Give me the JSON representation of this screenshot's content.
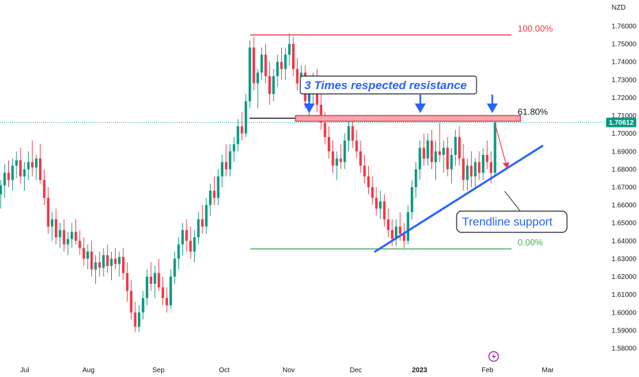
{
  "chart_data": {
    "type": "candlestick",
    "symbol_currency": "NZD",
    "y_ticks": [
      1.76,
      1.75,
      1.74,
      1.73,
      1.72,
      1.71,
      1.7,
      1.69,
      1.68,
      1.67,
      1.66,
      1.65,
      1.64,
      1.63,
      1.62,
      1.61,
      1.6,
      1.59,
      1.58
    ],
    "y_tick_labels": [
      "1.76000",
      "1.75000",
      "1.74000",
      "1.73000",
      "1.72000",
      "1.71000",
      "1.70000",
      "1.69000",
      "1.68000",
      "1.67000",
      "1.66000",
      "1.65000",
      "1.64000",
      "1.63000",
      "1.62000",
      "1.61000",
      "1.60000",
      "1.59000",
      "1.58000"
    ],
    "ylim": [
      1.5757,
      1.7675
    ],
    "x_labels": [
      "Jul",
      "Aug",
      "Sep",
      "Oct",
      "Nov",
      "Dec",
      "2023",
      "Feb",
      "Mar"
    ],
    "current_price": 1.70612,
    "current_price_label": "1.70612",
    "up_color": "#089981",
    "down_color": "#f23645",
    "fib_levels": [
      {
        "label": "100.00%",
        "price": 1.755,
        "color": "#f23645"
      },
      {
        "label": "61.80%",
        "price": 1.7085,
        "color": "#131722"
      },
      {
        "label": "0.00%",
        "price": 1.6355,
        "color": "#4caf50"
      }
    ],
    "resistance_zone": {
      "price_top": 1.71,
      "price_bottom": 1.7068,
      "color": "#f23645"
    },
    "annotations": {
      "resistance_text": "3 Times respected resistance",
      "trendline_text": "Trendline support"
    },
    "trendline": {
      "start_price": 1.634,
      "end_price": 1.693
    },
    "candles": [
      {
        "o": 1.666,
        "h": 1.674,
        "l": 1.658,
        "c": 1.671
      },
      {
        "o": 1.671,
        "h": 1.683,
        "l": 1.664,
        "c": 1.678
      },
      {
        "o": 1.678,
        "h": 1.685,
        "l": 1.67,
        "c": 1.674
      },
      {
        "o": 1.674,
        "h": 1.686,
        "l": 1.668,
        "c": 1.682
      },
      {
        "o": 1.682,
        "h": 1.69,
        "l": 1.675,
        "c": 1.685
      },
      {
        "o": 1.685,
        "h": 1.692,
        "l": 1.672,
        "c": 1.676
      },
      {
        "o": 1.676,
        "h": 1.684,
        "l": 1.668,
        "c": 1.68
      },
      {
        "o": 1.68,
        "h": 1.69,
        "l": 1.674,
        "c": 1.684
      },
      {
        "o": 1.684,
        "h": 1.696,
        "l": 1.676,
        "c": 1.681
      },
      {
        "o": 1.681,
        "h": 1.688,
        "l": 1.674,
        "c": 1.686
      },
      {
        "o": 1.686,
        "h": 1.694,
        "l": 1.672,
        "c": 1.674
      },
      {
        "o": 1.674,
        "h": 1.68,
        "l": 1.66,
        "c": 1.664
      },
      {
        "o": 1.664,
        "h": 1.67,
        "l": 1.644,
        "c": 1.648
      },
      {
        "o": 1.648,
        "h": 1.656,
        "l": 1.64,
        "c": 1.652
      },
      {
        "o": 1.652,
        "h": 1.658,
        "l": 1.638,
        "c": 1.642
      },
      {
        "o": 1.642,
        "h": 1.65,
        "l": 1.636,
        "c": 1.646
      },
      {
        "o": 1.646,
        "h": 1.652,
        "l": 1.634,
        "c": 1.638
      },
      {
        "o": 1.638,
        "h": 1.645,
        "l": 1.632,
        "c": 1.641
      },
      {
        "o": 1.641,
        "h": 1.65,
        "l": 1.636,
        "c": 1.645
      },
      {
        "o": 1.645,
        "h": 1.652,
        "l": 1.638,
        "c": 1.64
      },
      {
        "o": 1.64,
        "h": 1.646,
        "l": 1.632,
        "c": 1.636
      },
      {
        "o": 1.636,
        "h": 1.642,
        "l": 1.626,
        "c": 1.63
      },
      {
        "o": 1.63,
        "h": 1.638,
        "l": 1.624,
        "c": 1.634
      },
      {
        "o": 1.634,
        "h": 1.64,
        "l": 1.62,
        "c": 1.624
      },
      {
        "o": 1.624,
        "h": 1.632,
        "l": 1.616,
        "c": 1.628
      },
      {
        "o": 1.628,
        "h": 1.634,
        "l": 1.62,
        "c": 1.625
      },
      {
        "o": 1.625,
        "h": 1.636,
        "l": 1.62,
        "c": 1.632
      },
      {
        "o": 1.632,
        "h": 1.638,
        "l": 1.622,
        "c": 1.626
      },
      {
        "o": 1.626,
        "h": 1.634,
        "l": 1.618,
        "c": 1.63
      },
      {
        "o": 1.63,
        "h": 1.636,
        "l": 1.624,
        "c": 1.627
      },
      {
        "o": 1.627,
        "h": 1.634,
        "l": 1.62,
        "c": 1.631
      },
      {
        "o": 1.631,
        "h": 1.636,
        "l": 1.618,
        "c": 1.622
      },
      {
        "o": 1.622,
        "h": 1.628,
        "l": 1.606,
        "c": 1.612
      },
      {
        "o": 1.612,
        "h": 1.618,
        "l": 1.596,
        "c": 1.6
      },
      {
        "o": 1.6,
        "h": 1.606,
        "l": 1.589,
        "c": 1.592
      },
      {
        "o": 1.592,
        "h": 1.604,
        "l": 1.589,
        "c": 1.6
      },
      {
        "o": 1.6,
        "h": 1.612,
        "l": 1.596,
        "c": 1.608
      },
      {
        "o": 1.608,
        "h": 1.624,
        "l": 1.604,
        "c": 1.62
      },
      {
        "o": 1.62,
        "h": 1.628,
        "l": 1.612,
        "c": 1.616
      },
      {
        "o": 1.616,
        "h": 1.626,
        "l": 1.608,
        "c": 1.622
      },
      {
        "o": 1.622,
        "h": 1.63,
        "l": 1.612,
        "c": 1.614
      },
      {
        "o": 1.614,
        "h": 1.62,
        "l": 1.604,
        "c": 1.608
      },
      {
        "o": 1.608,
        "h": 1.614,
        "l": 1.6,
        "c": 1.604
      },
      {
        "o": 1.604,
        "h": 1.624,
        "l": 1.602,
        "c": 1.62
      },
      {
        "o": 1.62,
        "h": 1.634,
        "l": 1.616,
        "c": 1.63
      },
      {
        "o": 1.63,
        "h": 1.642,
        "l": 1.624,
        "c": 1.638
      },
      {
        "o": 1.638,
        "h": 1.65,
        "l": 1.632,
        "c": 1.646
      },
      {
        "o": 1.646,
        "h": 1.652,
        "l": 1.634,
        "c": 1.64
      },
      {
        "o": 1.64,
        "h": 1.648,
        "l": 1.63,
        "c": 1.634
      },
      {
        "o": 1.634,
        "h": 1.646,
        "l": 1.628,
        "c": 1.642
      },
      {
        "o": 1.642,
        "h": 1.656,
        "l": 1.638,
        "c": 1.652
      },
      {
        "o": 1.652,
        "h": 1.66,
        "l": 1.644,
        "c": 1.648
      },
      {
        "o": 1.648,
        "h": 1.664,
        "l": 1.644,
        "c": 1.66
      },
      {
        "o": 1.66,
        "h": 1.672,
        "l": 1.654,
        "c": 1.668
      },
      {
        "o": 1.668,
        "h": 1.676,
        "l": 1.66,
        "c": 1.664
      },
      {
        "o": 1.664,
        "h": 1.68,
        "l": 1.66,
        "c": 1.676
      },
      {
        "o": 1.676,
        "h": 1.688,
        "l": 1.67,
        "c": 1.684
      },
      {
        "o": 1.684,
        "h": 1.694,
        "l": 1.676,
        "c": 1.68
      },
      {
        "o": 1.68,
        "h": 1.694,
        "l": 1.676,
        "c": 1.69
      },
      {
        "o": 1.69,
        "h": 1.698,
        "l": 1.684,
        "c": 1.694
      },
      {
        "o": 1.694,
        "h": 1.708,
        "l": 1.69,
        "c": 1.704
      },
      {
        "o": 1.704,
        "h": 1.712,
        "l": 1.696,
        "c": 1.7
      },
      {
        "o": 1.7,
        "h": 1.722,
        "l": 1.698,
        "c": 1.718
      },
      {
        "o": 1.718,
        "h": 1.752,
        "l": 1.714,
        "c": 1.748
      },
      {
        "o": 1.748,
        "h": 1.754,
        "l": 1.724,
        "c": 1.728
      },
      {
        "o": 1.728,
        "h": 1.736,
        "l": 1.714,
        "c": 1.734
      },
      {
        "o": 1.734,
        "h": 1.748,
        "l": 1.73,
        "c": 1.744
      },
      {
        "o": 1.744,
        "h": 1.75,
        "l": 1.728,
        "c": 1.732
      },
      {
        "o": 1.732,
        "h": 1.74,
        "l": 1.716,
        "c": 1.722
      },
      {
        "o": 1.722,
        "h": 1.736,
        "l": 1.718,
        "c": 1.732
      },
      {
        "o": 1.732,
        "h": 1.744,
        "l": 1.726,
        "c": 1.74
      },
      {
        "o": 1.74,
        "h": 1.748,
        "l": 1.73,
        "c": 1.736
      },
      {
        "o": 1.736,
        "h": 1.748,
        "l": 1.73,
        "c": 1.744
      },
      {
        "o": 1.744,
        "h": 1.756,
        "l": 1.738,
        "c": 1.75
      },
      {
        "o": 1.75,
        "h": 1.754,
        "l": 1.732,
        "c": 1.736
      },
      {
        "o": 1.736,
        "h": 1.742,
        "l": 1.724,
        "c": 1.728
      },
      {
        "o": 1.728,
        "h": 1.738,
        "l": 1.722,
        "c": 1.734
      },
      {
        "o": 1.734,
        "h": 1.738,
        "l": 1.714,
        "c": 1.718
      },
      {
        "o": 1.718,
        "h": 1.726,
        "l": 1.708,
        "c": 1.722
      },
      {
        "o": 1.722,
        "h": 1.734,
        "l": 1.716,
        "c": 1.73
      },
      {
        "o": 1.73,
        "h": 1.736,
        "l": 1.712,
        "c": 1.716
      },
      {
        "o": 1.716,
        "h": 1.722,
        "l": 1.702,
        "c": 1.706
      },
      {
        "o": 1.706,
        "h": 1.712,
        "l": 1.694,
        "c": 1.698
      },
      {
        "o": 1.698,
        "h": 1.704,
        "l": 1.686,
        "c": 1.69
      },
      {
        "o": 1.69,
        "h": 1.696,
        "l": 1.678,
        "c": 1.682
      },
      {
        "o": 1.682,
        "h": 1.69,
        "l": 1.674,
        "c": 1.686
      },
      {
        "o": 1.686,
        "h": 1.694,
        "l": 1.68,
        "c": 1.684
      },
      {
        "o": 1.684,
        "h": 1.7,
        "l": 1.68,
        "c": 1.696
      },
      {
        "o": 1.696,
        "h": 1.708,
        "l": 1.69,
        "c": 1.704
      },
      {
        "o": 1.704,
        "h": 1.71,
        "l": 1.692,
        "c": 1.696
      },
      {
        "o": 1.696,
        "h": 1.702,
        "l": 1.686,
        "c": 1.69
      },
      {
        "o": 1.69,
        "h": 1.696,
        "l": 1.678,
        "c": 1.682
      },
      {
        "o": 1.682,
        "h": 1.688,
        "l": 1.672,
        "c": 1.676
      },
      {
        "o": 1.676,
        "h": 1.682,
        "l": 1.666,
        "c": 1.67
      },
      {
        "o": 1.67,
        "h": 1.676,
        "l": 1.66,
        "c": 1.664
      },
      {
        "o": 1.664,
        "h": 1.67,
        "l": 1.654,
        "c": 1.658
      },
      {
        "o": 1.658,
        "h": 1.668,
        "l": 1.652,
        "c": 1.662
      },
      {
        "o": 1.662,
        "h": 1.666,
        "l": 1.648,
        "c": 1.652
      },
      {
        "o": 1.652,
        "h": 1.658,
        "l": 1.642,
        "c": 1.646
      },
      {
        "o": 1.646,
        "h": 1.652,
        "l": 1.637,
        "c": 1.641
      },
      {
        "o": 1.641,
        "h": 1.652,
        "l": 1.637,
        "c": 1.648
      },
      {
        "o": 1.648,
        "h": 1.656,
        "l": 1.64,
        "c": 1.644
      },
      {
        "o": 1.644,
        "h": 1.65,
        "l": 1.636,
        "c": 1.64
      },
      {
        "o": 1.64,
        "h": 1.66,
        "l": 1.638,
        "c": 1.656
      },
      {
        "o": 1.656,
        "h": 1.674,
        "l": 1.652,
        "c": 1.67
      },
      {
        "o": 1.67,
        "h": 1.684,
        "l": 1.664,
        "c": 1.68
      },
      {
        "o": 1.68,
        "h": 1.696,
        "l": 1.674,
        "c": 1.692
      },
      {
        "o": 1.692,
        "h": 1.7,
        "l": 1.682,
        "c": 1.686
      },
      {
        "o": 1.686,
        "h": 1.7,
        "l": 1.682,
        "c": 1.696
      },
      {
        "o": 1.696,
        "h": 1.702,
        "l": 1.68,
        "c": 1.684
      },
      {
        "o": 1.684,
        "h": 1.696,
        "l": 1.674,
        "c": 1.69
      },
      {
        "o": 1.69,
        "h": 1.706,
        "l": 1.684,
        "c": 1.688
      },
      {
        "o": 1.688,
        "h": 1.696,
        "l": 1.678,
        "c": 1.692
      },
      {
        "o": 1.692,
        "h": 1.698,
        "l": 1.676,
        "c": 1.68
      },
      {
        "o": 1.68,
        "h": 1.692,
        "l": 1.672,
        "c": 1.688
      },
      {
        "o": 1.688,
        "h": 1.702,
        "l": 1.682,
        "c": 1.698
      },
      {
        "o": 1.698,
        "h": 1.704,
        "l": 1.682,
        "c": 1.686
      },
      {
        "o": 1.686,
        "h": 1.694,
        "l": 1.668,
        "c": 1.674
      },
      {
        "o": 1.674,
        "h": 1.686,
        "l": 1.668,
        "c": 1.682
      },
      {
        "o": 1.682,
        "h": 1.69,
        "l": 1.67,
        "c": 1.676
      },
      {
        "o": 1.676,
        "h": 1.686,
        "l": 1.67,
        "c": 1.684
      },
      {
        "o": 1.684,
        "h": 1.69,
        "l": 1.674,
        "c": 1.678
      },
      {
        "o": 1.678,
        "h": 1.692,
        "l": 1.674,
        "c": 1.688
      },
      {
        "o": 1.688,
        "h": 1.696,
        "l": 1.68,
        "c": 1.684
      },
      {
        "o": 1.684,
        "h": 1.69,
        "l": 1.672,
        "c": 1.678
      },
      {
        "o": 1.678,
        "h": 1.708,
        "l": 1.676,
        "c": 1.706
      }
    ]
  }
}
